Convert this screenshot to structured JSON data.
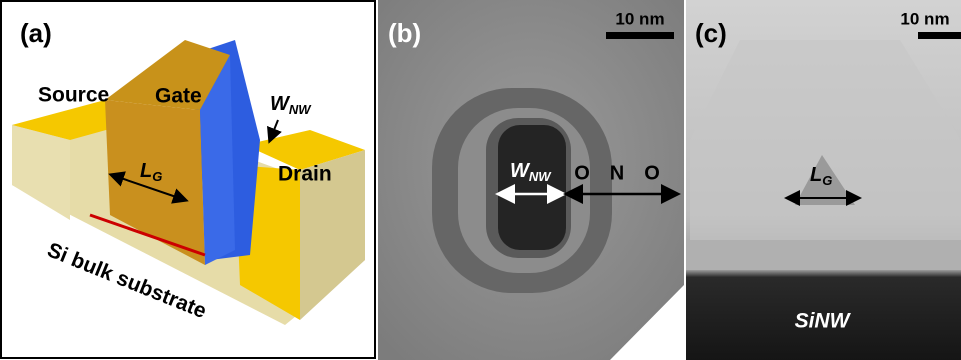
{
  "panels": [
    {
      "label": "(a)",
      "source": "Source",
      "gate": "Gate",
      "drain": "Drain",
      "width": {
        "symbol": "W",
        "subscript": "NW"
      },
      "length": {
        "symbol": "L",
        "subscript": "G"
      },
      "substrate": "Si bulk substrate"
    },
    {
      "label": "(b)",
      "scale_bar": "10 nm",
      "width": {
        "symbol": "W",
        "subscript": "NW"
      },
      "layers": [
        "O",
        "N",
        "O"
      ]
    },
    {
      "label": "(c)",
      "scale_bar": "10 nm",
      "length": {
        "symbol": "L",
        "subscript": "G"
      },
      "material": "SiNW"
    }
  ]
}
